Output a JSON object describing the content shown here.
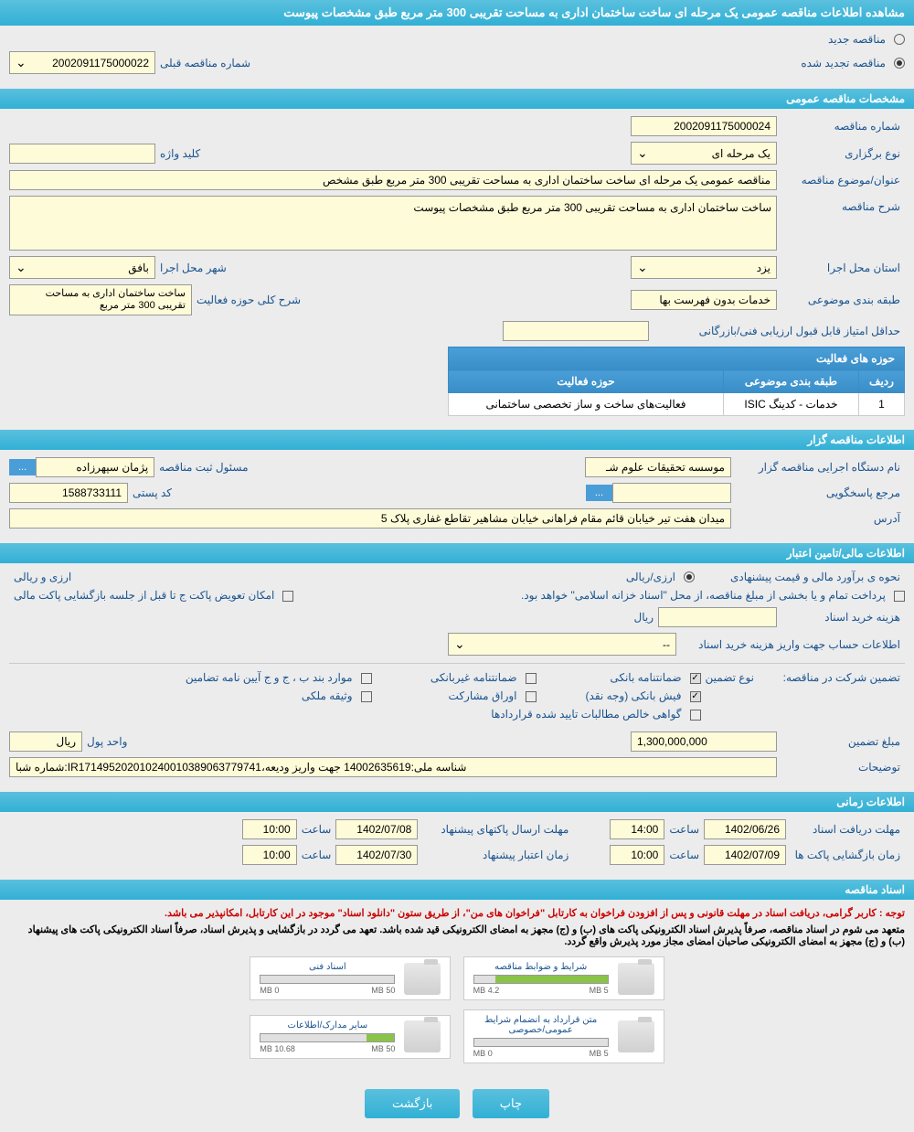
{
  "title": "مشاهده اطلاعات مناقصه عمومی یک مرحله ای ساخت ساختمان اداری به مساحت تقریبی 300 متر مربع طبق مشخصات پیوست",
  "top": {
    "new_tender": "مناقصه جدید",
    "renewed_tender": "مناقصه تجدید شده",
    "prev_number_label": "شماره مناقصه قبلی",
    "prev_number_value": "2002091175000022"
  },
  "sec1": {
    "header": "مشخصات مناقصه عمومی",
    "tender_number_label": "شماره مناقصه",
    "tender_number_value": "2002091175000024",
    "type_label": "نوع برگزاری",
    "type_value": "یک مرحله ای",
    "keyword_label": "کلید واژه",
    "keyword_value": "",
    "subject_label": "عنوان/موضوع مناقصه",
    "subject_value": "مناقصه عمومی یک مرحله ای ساخت ساختمان اداری به مساحت تقریبی 300 متر مربع طبق مشخص",
    "desc_label": "شرح مناقصه",
    "desc_value": "ساخت ساختمان اداری به مساحت تقریبی 300 متر مربع طبق مشخصات پیوست",
    "state_label": "استان محل اجرا",
    "state_value": "یزد",
    "city_label": "شهر محل اجرا",
    "city_value": "بافق",
    "category_label": "طبقه بندی موضوعی",
    "category_value": "خدمات بدون فهرست بها",
    "scope_label": "شرح کلی حوزه فعالیت",
    "scope_value": "ساخت ساختمان اداری به مساحت تقریبی 300 متر مربع",
    "min_score_label": "حداقل امتیاز قابل قبول ارزیابی فنی/بازرگانی",
    "min_score_value": "",
    "activity_header": "حوزه های فعالیت",
    "th_row": "ردیف",
    "th_category": "طبقه بندی موضوعی",
    "th_activity": "حوزه فعالیت",
    "row_num": "1",
    "row_category": "خدمات - کدینگ ISIC",
    "row_activity": "فعالیت‌های ساخت و ساز تخصصی ساختمانی"
  },
  "sec2": {
    "header": "اطلاعات مناقصه گزار",
    "org_label": "نام دستگاه اجرایی مناقصه گزار",
    "org_value": "موسسه تحقیقات علوم شـ",
    "reg_label": "مسئول ثبت مناقصه",
    "reg_value": "پژمان سپهرزاده",
    "resp_label": "مرجع پاسخگویی",
    "resp_value": "",
    "postal_label": "کد پستی",
    "postal_value": "1588733111",
    "address_label": "آدرس",
    "address_value": "میدان هفت تیر خیابان قائم مقام فراهانی خیابان مشاهیر تقاطع غفاری پلاک 5",
    "ellipsis": "..."
  },
  "sec3": {
    "header": "اطلاعات مالی/تامین اعتبار",
    "est_label": "نحوه ی برآورد مالی و قیمت پیشنهادی",
    "opt_currency": "ارزی/ریالی",
    "opt_curr_rial": "ارزی و ریالی",
    "pay_text": "پرداخت تمام و یا بخشی از مبلغ مناقصه، از محل \"اسناد خزانه اسلامی\" خواهد بود.",
    "replace_text": "امکان تعویض پاکت ج تا قبل از جلسه بازگشایی پاکت مالی",
    "doc_cost_label": "هزینه خرید اسناد",
    "doc_cost_value": "",
    "rial": "ریال",
    "account_label": "اطلاعات حساب جهت واریز هزینه خرید اسناد",
    "account_value": "--",
    "guarantee_label": "تضمین شرکت در مناقصه:",
    "guarantee_type_label": "نوع تضمین",
    "bank_guarantee": "ضمانتنامه بانکی",
    "nonbank_guarantee": "ضمانتنامه غیربانکی",
    "items_bcg": "موارد بند ب ، ج و ج آیین نامه تضامین",
    "bank_receipt": "فیش بانکی (وجه نقد)",
    "shares": "اوراق مشارکت",
    "property": "وثیقه ملکی",
    "cert": "گواهی خالص مطالبات تایید شده قراردادها",
    "amount_label": "مبلغ تضمین",
    "amount_value": "1,300,000,000",
    "unit_label": "واحد پول",
    "unit_value": "ریال",
    "notes_label": "توضیحات",
    "notes_value": "شماره شبا:IR171495202010240010389063779741،شناسه ملی:14002635619 جهت واریز ودیعه"
  },
  "sec4": {
    "header": "اطلاعات زمانی",
    "recv_label": "مهلت دریافت اسناد",
    "recv_date": "1402/06/26",
    "time_label": "ساعت",
    "recv_time": "14:00",
    "send_label": "مهلت ارسال پاکتهای پیشنهاد",
    "send_date": "1402/07/08",
    "send_time": "10:00",
    "open_label": "زمان بازگشایی پاکت ها",
    "open_date": "1402/07/09",
    "open_time": "10:00",
    "valid_label": "زمان اعتبار پیشنهاد",
    "valid_date": "1402/07/30",
    "valid_time": "10:00"
  },
  "sec5": {
    "header": "اسناد مناقصه",
    "note1": "توجه : کاربر گرامی، دریافت اسناد در مهلت قانونی و پس از افزودن فراخوان به کارتابل \"فراخوان های من\"، از طریق ستون \"دانلود اسناد\" موجود در این کارتابل، امکانپذیر می باشد.",
    "note2": "متعهد می شوم در اسناد مناقصه، صرفاً پذیرش اسناد الکترونیکی پاکت های (ب) و (ج) مجهز به امضای الکترونیکی قید شده باشد. تعهد می گردد در بازگشایی و پذیرش اسناد، صرفاً اسناد الکترونیکی پاکت های پیشنهاد (ب) و (ج) مجهز به امضای الکترونیکی صاحبان امضای مجاز مورد پذیرش واقع گردد.",
    "file1_name": "شرایط و ضوابط مناقصه",
    "file1_used": "4.2 MB",
    "file1_total": "5 MB",
    "file1_pct": 84,
    "file2_name": "اسناد فنی",
    "file2_used": "0 MB",
    "file2_total": "50 MB",
    "file2_pct": 0,
    "file3_name": "متن قرارداد به انضمام شرایط عمومی/خصوصی",
    "file3_used": "0 MB",
    "file3_total": "5 MB",
    "file3_pct": 0,
    "file4_name": "سایر مدارک/اطلاعات",
    "file4_used": "10.68 MB",
    "file4_total": "50 MB",
    "file4_pct": 21
  },
  "buttons": {
    "print": "چاپ",
    "back": "بازگشت"
  }
}
